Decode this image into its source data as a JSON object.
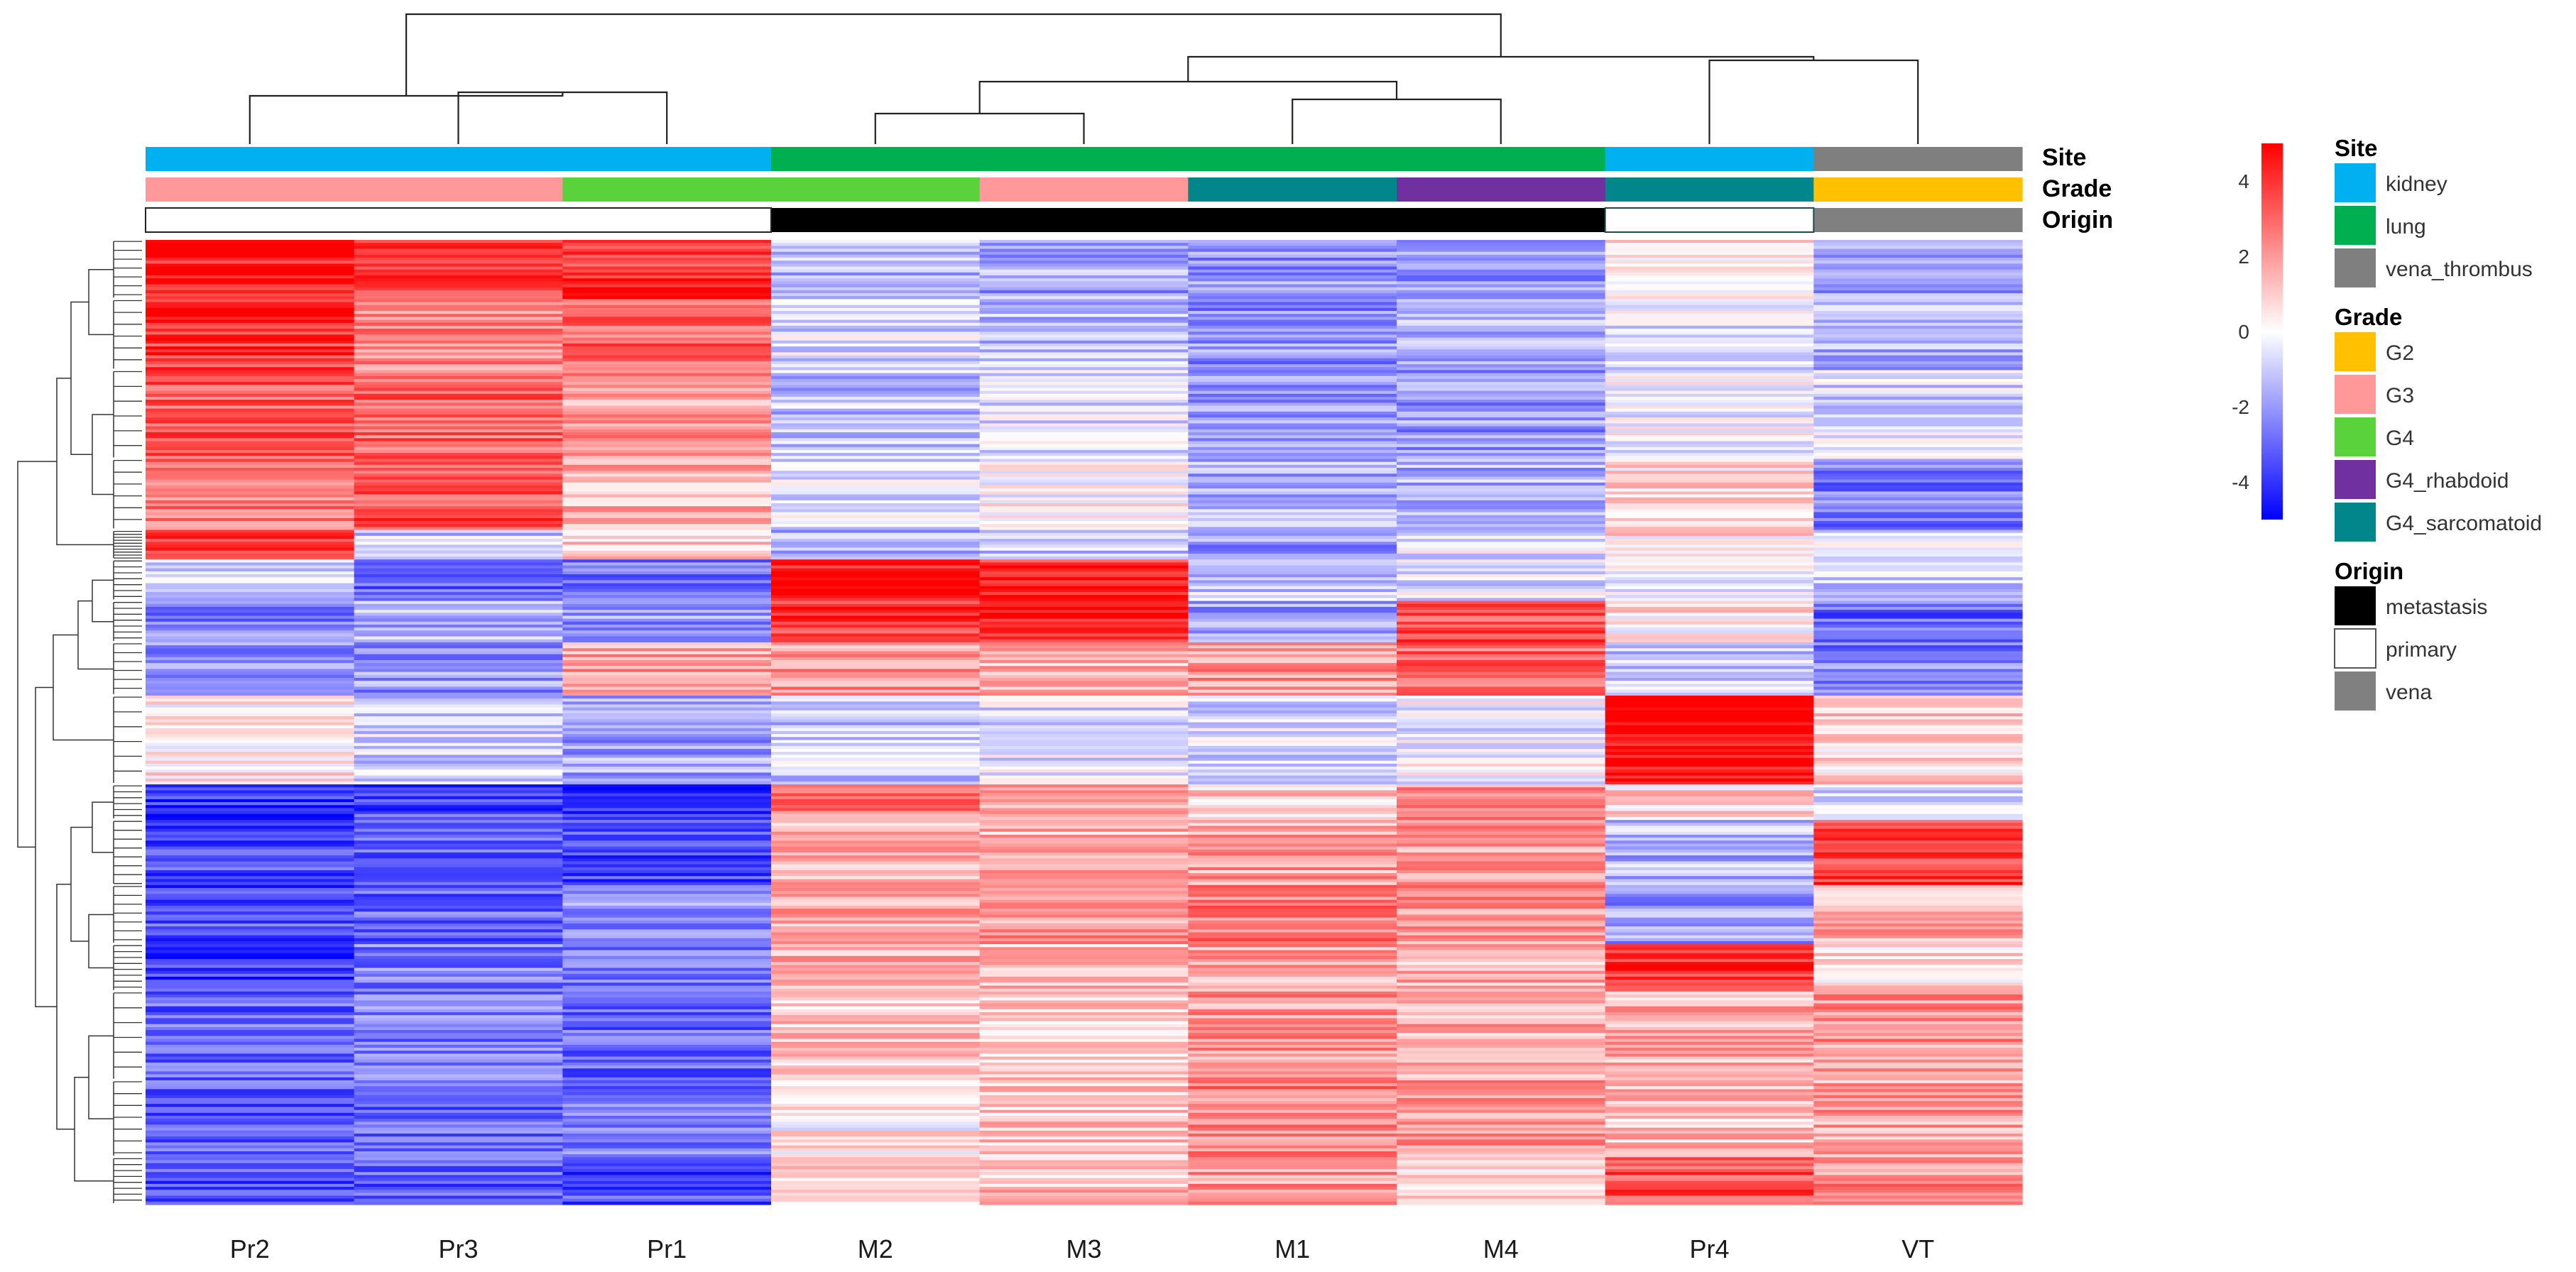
{
  "chart_data": {
    "type": "heatmap",
    "title": "",
    "columns": [
      "Pr2",
      "Pr3",
      "Pr1",
      "M2",
      "M3",
      "M1",
      "M4",
      "Pr4",
      "VT"
    ],
    "column_annotations": {
      "Site": [
        "kidney",
        "kidney",
        "kidney",
        "lung",
        "lung",
        "lung",
        "lung",
        "kidney",
        "vena_thrombus"
      ],
      "Grade": [
        "G3",
        "G3",
        "G4",
        "G4",
        "G3",
        "G4_sarcomatoid",
        "G4_rhabdoid",
        "G4_sarcomatoid",
        "G2"
      ],
      "Origin": [
        "primary",
        "primary",
        "primary",
        "metastasis",
        "metastasis",
        "metastasis",
        "metastasis",
        "primary",
        "vena"
      ]
    },
    "annotation_labels": [
      "Site",
      "Grade",
      "Origin"
    ],
    "color_scale": {
      "min": -5,
      "max": 5,
      "ticks": [
        4,
        2,
        0,
        -2,
        -4
      ],
      "low_color": "#0000ff",
      "mid_color": "#ffffff",
      "high_color": "#ff0000"
    },
    "legend": [
      {
        "title": "Site",
        "items": [
          {
            "label": "kidney",
            "color": "#00b0f0"
          },
          {
            "label": "lung",
            "color": "#00b050"
          },
          {
            "label": "vena_thrombus",
            "color": "#7f7f7f"
          }
        ]
      },
      {
        "title": "Grade",
        "items": [
          {
            "label": "G2",
            "color": "#ffc000"
          },
          {
            "label": "G3",
            "color": "#ff9999"
          },
          {
            "label": "G4",
            "color": "#5ad23c"
          },
          {
            "label": "G4_rhabdoid",
            "color": "#7030a0"
          },
          {
            "label": "G4_sarcomatoid",
            "color": "#00868b"
          }
        ]
      },
      {
        "title": "Origin",
        "items": [
          {
            "label": "metastasis",
            "color": "#000000"
          },
          {
            "label": "primary",
            "color": "#ffffff"
          },
          {
            "label": "vena",
            "color": "#808080"
          }
        ]
      }
    ],
    "column_dendrogram_merges": [
      [
        1,
        2
      ],
      [
        0,
        -1
      ],
      [
        3,
        4
      ],
      [
        5,
        6
      ],
      [
        -3,
        -4
      ],
      [
        7,
        8
      ],
      [
        -5,
        -6
      ],
      [
        -2,
        -7
      ]
    ],
    "row_clusters": [
      {
        "rows": 20,
        "values": [
          4.5,
          3.8,
          4.0,
          -1.5,
          -1.8,
          -2.0,
          -1.8,
          0.6,
          -2.0
        ]
      },
      {
        "rows": 24,
        "values": [
          4.0,
          2.5,
          3.0,
          -0.8,
          -1.2,
          -2.2,
          -1.5,
          -0.5,
          -1.5
        ]
      },
      {
        "rows": 30,
        "values": [
          3.2,
          3.0,
          2.0,
          -1.2,
          -0.5,
          -2.0,
          -2.0,
          -0.3,
          -0.8
        ]
      },
      {
        "rows": 24,
        "values": [
          2.8,
          3.5,
          1.5,
          -0.6,
          0.2,
          -1.6,
          -1.5,
          0.8,
          -2.5
        ]
      },
      {
        "rows": 10,
        "values": [
          3.5,
          -1.0,
          1.0,
          -1.5,
          -1.0,
          -2.0,
          -0.5,
          0.5,
          -0.8
        ]
      },
      {
        "rows": 14,
        "values": [
          -1.0,
          -3.0,
          -2.5,
          4.5,
          4.2,
          -1.0,
          -0.5,
          -0.5,
          -1.0
        ]
      },
      {
        "rows": 14,
        "values": [
          -2.5,
          -1.5,
          -2.0,
          4.0,
          4.5,
          -2.0,
          3.5,
          0.5,
          -3.0
        ]
      },
      {
        "rows": 18,
        "values": [
          -2.0,
          -2.0,
          1.8,
          2.0,
          1.5,
          2.0,
          3.0,
          -1.0,
          -2.5
        ]
      },
      {
        "rows": 30,
        "values": [
          0.5,
          -0.8,
          -1.8,
          -1.0,
          -0.5,
          -0.8,
          -0.3,
          4.8,
          0.8
        ]
      },
      {
        "rows": 12,
        "values": [
          -4.0,
          -3.5,
          -3.8,
          2.5,
          2.0,
          1.0,
          2.2,
          0.8,
          -1.0
        ]
      },
      {
        "rows": 22,
        "values": [
          -3.5,
          -3.0,
          -3.5,
          1.5,
          1.5,
          1.8,
          2.0,
          -1.5,
          3.8
        ]
      },
      {
        "rows": 20,
        "values": [
          -3.5,
          -3.0,
          -2.0,
          1.8,
          2.0,
          2.5,
          2.2,
          -2.0,
          1.5
        ]
      },
      {
        "rows": 16,
        "values": [
          -3.8,
          -2.5,
          -2.5,
          1.5,
          1.2,
          1.8,
          1.5,
          4.2,
          0.5
        ]
      },
      {
        "rows": 30,
        "values": [
          -3.0,
          -2.5,
          -3.0,
          1.0,
          0.8,
          2.0,
          1.5,
          1.5,
          2.0
        ]
      },
      {
        "rows": 26,
        "values": [
          -3.2,
          -3.0,
          -2.8,
          0.3,
          1.0,
          2.5,
          1.8,
          1.2,
          1.8
        ]
      },
      {
        "rows": 16,
        "values": [
          -3.5,
          -3.2,
          -3.5,
          1.0,
          1.2,
          2.0,
          1.0,
          3.5,
          2.2
        ]
      }
    ]
  }
}
